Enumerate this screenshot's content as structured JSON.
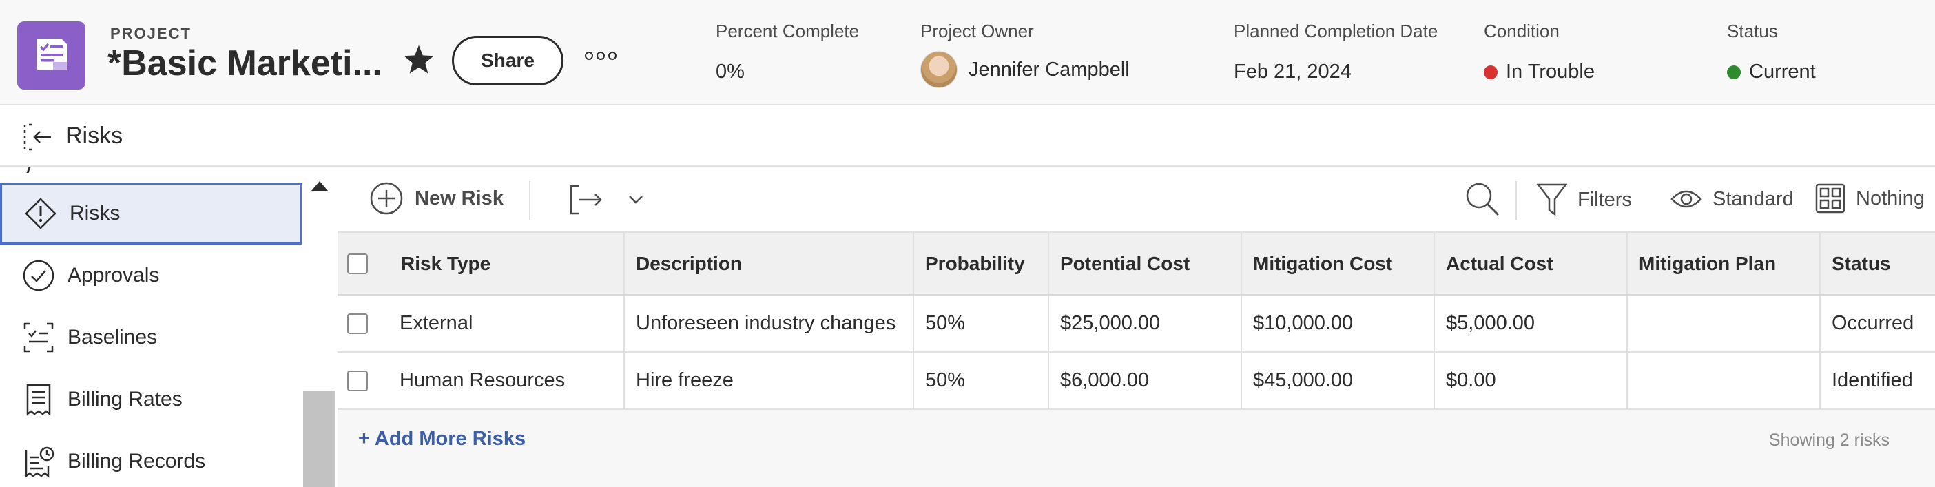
{
  "header": {
    "project_label": "PROJECT",
    "project_title": "*Basic Marketi...",
    "share_label": "Share",
    "fields": {
      "percent_complete": {
        "label": "Percent Complete",
        "value": "0%"
      },
      "project_owner": {
        "label": "Project Owner",
        "value": "Jennifer Campbell"
      },
      "planned_completion": {
        "label": "Planned Completion Date",
        "value": "Feb 21, 2024"
      },
      "condition": {
        "label": "Condition",
        "value": "In Trouble",
        "color": "#d7322f"
      },
      "status": {
        "label": "Status",
        "value": "Current",
        "color": "#2d8a2d"
      }
    }
  },
  "subbar": {
    "title": "Risks"
  },
  "sidebar": {
    "items": [
      {
        "label": "Risks",
        "icon": "risk-diamond-icon",
        "active": true
      },
      {
        "label": "Approvals",
        "icon": "check-circle-icon",
        "active": false
      },
      {
        "label": "Baselines",
        "icon": "baseline-icon",
        "active": false
      },
      {
        "label": "Billing Rates",
        "icon": "receipt-icon",
        "active": false
      },
      {
        "label": "Billing Records",
        "icon": "receipt-clock-icon",
        "active": false
      }
    ]
  },
  "toolbar": {
    "new_risk": "New Risk",
    "filters": "Filters",
    "view": "Standard",
    "grouping": "Nothing"
  },
  "table": {
    "columns": [
      "Risk Type",
      "Description",
      "Probability",
      "Potential Cost",
      "Mitigation Cost",
      "Actual Cost",
      "Mitigation Plan",
      "Status"
    ],
    "rows": [
      [
        "External",
        "Unforeseen industry changes",
        "50%",
        "$25,000.00",
        "$10,000.00",
        "$5,000.00",
        "",
        "Occurred"
      ],
      [
        "Human Resources",
        "Hire freeze",
        "50%",
        "$6,000.00",
        "$45,000.00",
        "$0.00",
        "",
        "Identified"
      ]
    ]
  },
  "footer": {
    "add_more": "+ Add More Risks",
    "showing": "Showing 2 risks"
  },
  "colors": {
    "accent": "#8b5fc8",
    "link": "#3b5ea8",
    "active_border": "#4a6fd1"
  }
}
